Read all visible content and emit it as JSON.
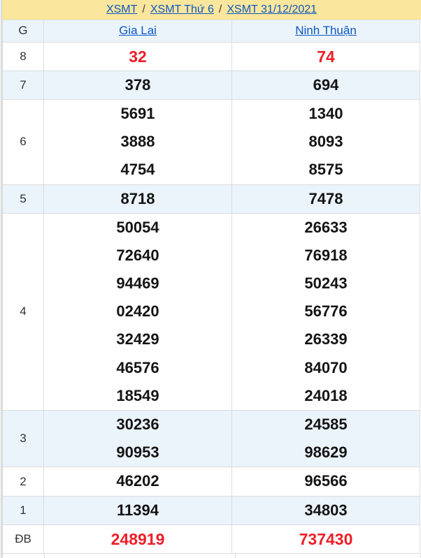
{
  "breadcrumb": {
    "links": [
      "XSMT",
      "XSMT Thứ 6",
      "XSMT 31/12/2021"
    ],
    "separator": "/"
  },
  "table": {
    "header": {
      "prize_col": "G",
      "provinces": [
        "Gia Lai",
        "Ninh Thuận"
      ]
    },
    "rows": [
      {
        "label": "8",
        "col1": [
          "32"
        ],
        "col2": [
          "74"
        ]
      },
      {
        "label": "7",
        "col1": [
          "378"
        ],
        "col2": [
          "694"
        ]
      },
      {
        "label": "6",
        "col1": [
          "5691",
          "3888",
          "4754"
        ],
        "col2": [
          "1340",
          "8093",
          "8575"
        ]
      },
      {
        "label": "5",
        "col1": [
          "8718"
        ],
        "col2": [
          "7478"
        ]
      },
      {
        "label": "4",
        "col1": [
          "50054",
          "72640",
          "94469",
          "02420",
          "32429",
          "46576",
          "18549"
        ],
        "col2": [
          "26633",
          "76918",
          "50243",
          "56776",
          "26339",
          "84070",
          "24018"
        ]
      },
      {
        "label": "3",
        "col1": [
          "30236",
          "90953"
        ],
        "col2": [
          "24585",
          "98629"
        ]
      },
      {
        "label": "2",
        "col1": [
          "46202"
        ],
        "col2": [
          "96566"
        ]
      },
      {
        "label": "1",
        "col1": [
          "11394"
        ],
        "col2": [
          "34803"
        ]
      },
      {
        "label": "ĐB",
        "col1": [
          "248919"
        ],
        "col2": [
          "737430"
        ]
      }
    ]
  },
  "colors": {
    "banner_yellow": "#fae69c",
    "row_alt_blue": "#ebf4fb",
    "link_blue": "#0d57c2",
    "special_red": "#ee1e28",
    "border_gray": "#dcdcdc"
  }
}
